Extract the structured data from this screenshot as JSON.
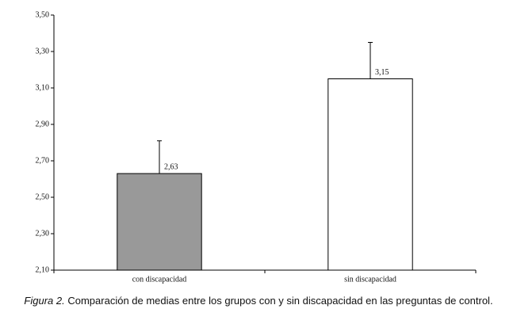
{
  "chart_data": {
    "type": "bar",
    "categories": [
      "con discapacidad",
      "sin discapacidad"
    ],
    "values": [
      2.63,
      3.15
    ],
    "value_labels": [
      "2,63",
      "3,15"
    ],
    "errors": [
      0.18,
      0.2
    ],
    "colors": [
      "#999999",
      "#ffffff"
    ],
    "ylim": [
      2.1,
      3.5
    ],
    "yticks": [
      {
        "value": 2.1,
        "label": "2,10"
      },
      {
        "value": 2.3,
        "label": "2,30"
      },
      {
        "value": 2.5,
        "label": "2,50"
      },
      {
        "value": 2.7,
        "label": "2,70"
      },
      {
        "value": 2.9,
        "label": "2,90"
      },
      {
        "value": 3.1,
        "label": "3,10"
      },
      {
        "value": 3.3,
        "label": "3,30"
      },
      {
        "value": 3.5,
        "label": "3,50"
      }
    ],
    "caption_label": "Figura 2.",
    "caption": "Comparación de medias entre los grupos con y sin discapacidad en las preguntas de control."
  }
}
